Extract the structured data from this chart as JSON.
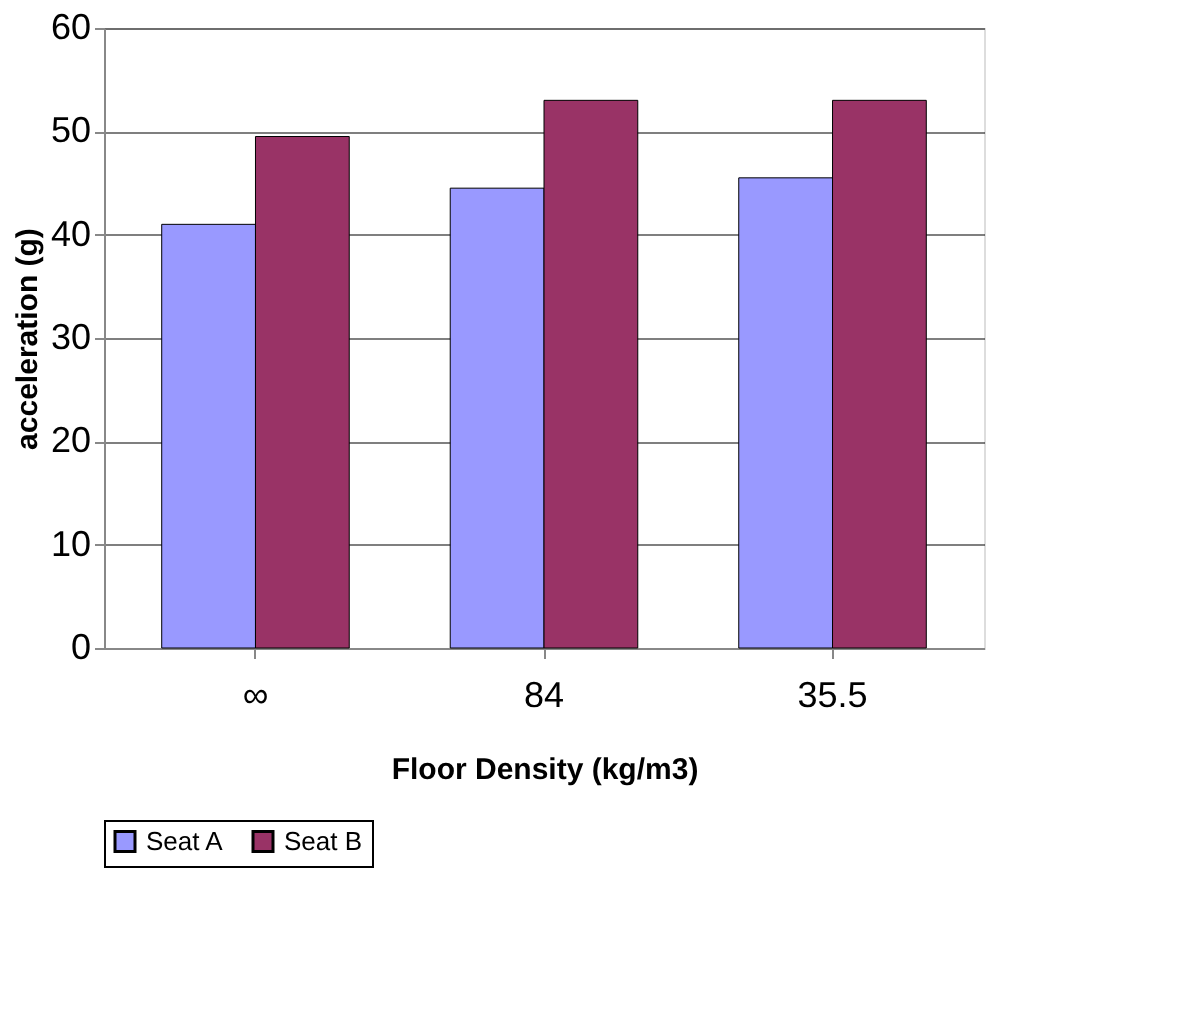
{
  "chart_data": {
    "type": "bar",
    "xlabel": "Floor Density (kg/m3)",
    "ylabel": "acceleration (g)",
    "categories": [
      "∞",
      "84",
      "35.5"
    ],
    "series": [
      {
        "name": "Seat A",
        "color": "#9999ff",
        "values": [
          41,
          44.5,
          45.5
        ]
      },
      {
        "name": "Seat B",
        "color": "#993366",
        "values": [
          49.5,
          53,
          53
        ]
      }
    ],
    "ylim": [
      0,
      60
    ],
    "yticks": [
      0,
      10,
      20,
      30,
      40,
      50,
      60
    ],
    "grid": "y",
    "legend": "bottom"
  }
}
